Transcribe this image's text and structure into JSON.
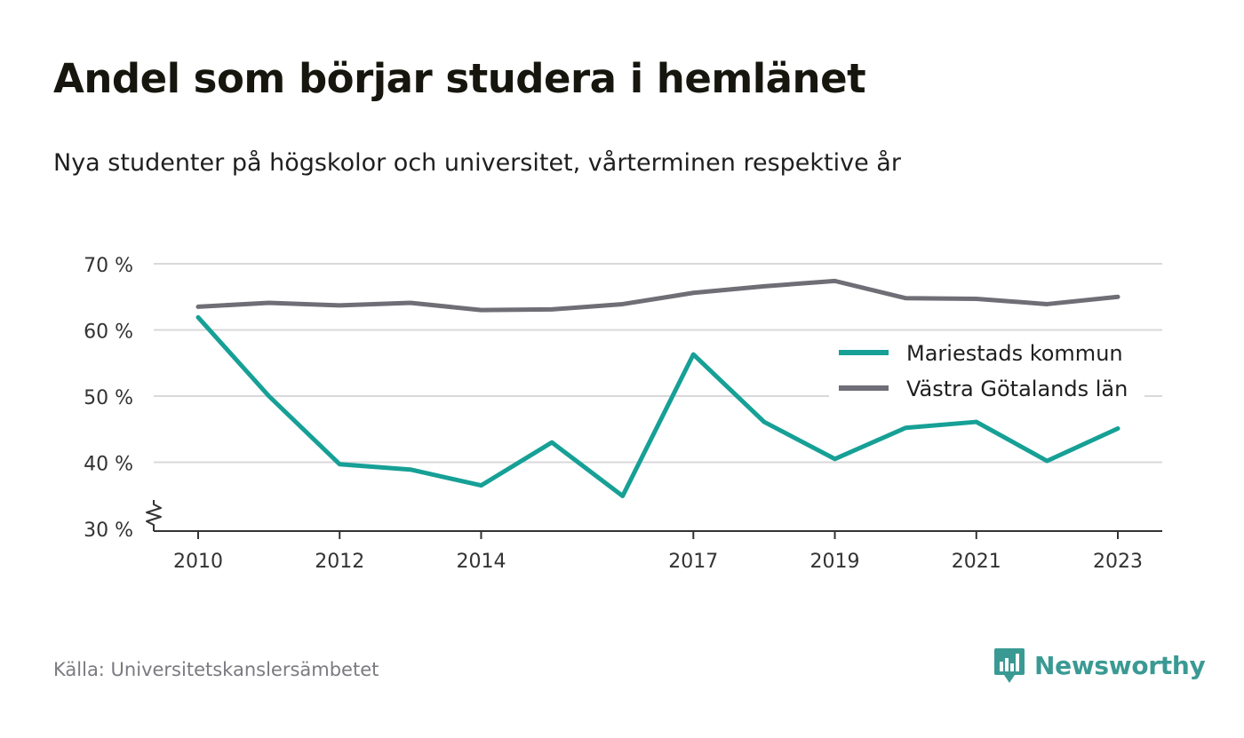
{
  "title": "Andel som börjar studera i hemlänet",
  "subtitle": "Nya studenter på högskolor och universitet, vårterminen respektive år",
  "source": "Källa: Universitetskanslersämbetet",
  "brand": {
    "name": "Newsworthy",
    "icon": "newsworthy-logo-icon",
    "color": "#3a9a93"
  },
  "chart_data": {
    "type": "line",
    "x": [
      2010,
      2011,
      2012,
      2013,
      2014,
      2015,
      2016,
      2017,
      2018,
      2019,
      2020,
      2021,
      2022,
      2023
    ],
    "x_tick_values": [
      2010,
      2012,
      2014,
      2017,
      2019,
      2021,
      2023
    ],
    "x_tick_labels": [
      "2010",
      "2012",
      "2014",
      "2017",
      "2019",
      "2021",
      "2023"
    ],
    "y_tick_values": [
      30,
      40,
      50,
      60,
      70
    ],
    "y_tick_labels": [
      "30 %",
      "40 %",
      "50 %",
      "60 %",
      "70 %"
    ],
    "ylim": [
      30,
      70
    ],
    "axis_break": true,
    "grid": true,
    "legend_position": "right",
    "series": [
      {
        "name": "Mariestads kommun",
        "color": "#16a096",
        "values": [
          61.9,
          50.0,
          39.7,
          38.9,
          36.5,
          43.0,
          34.9,
          56.3,
          46.1,
          40.5,
          45.2,
          46.1,
          40.2,
          45.1
        ]
      },
      {
        "name": "Västra Götalands län",
        "color": "#6f6e76",
        "values": [
          63.5,
          64.1,
          63.7,
          64.1,
          63.0,
          63.1,
          63.9,
          65.6,
          66.6,
          67.4,
          64.8,
          64.7,
          63.9,
          65.0
        ]
      }
    ]
  }
}
